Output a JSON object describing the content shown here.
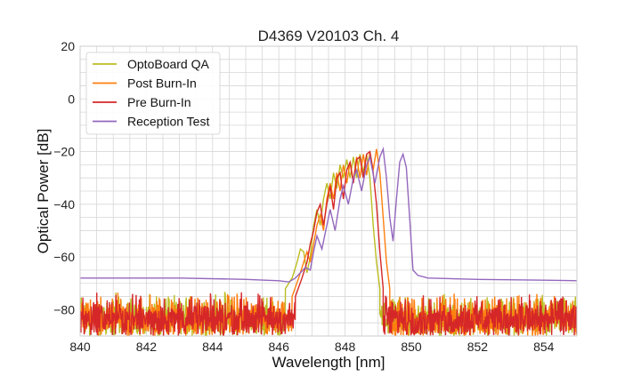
{
  "chart_data": {
    "type": "line",
    "title": "D4369 V20103 Ch. 4",
    "xlabel": "Wavelength [nm]",
    "ylabel": "Optical Power [dB]",
    "xlim": [
      840,
      855
    ],
    "ylim": [
      -90,
      20
    ],
    "x_ticks": [
      "840",
      "842",
      "844",
      "846",
      "848",
      "850",
      "852",
      "854"
    ],
    "y_ticks": [
      "−80",
      "−60",
      "−40",
      "−20",
      "0",
      "20"
    ],
    "grid": true,
    "legend_position": "top-left",
    "noise_floor": {
      "min": -90,
      "max": -73
    },
    "series": [
      {
        "name": "OptoBoard QA",
        "color": "#bcbd22",
        "noise": {
          "start": 840,
          "end": 846.2
        },
        "points": [
          [
            846.2,
            -72
          ],
          [
            846.4,
            -68
          ],
          [
            846.55,
            -62
          ],
          [
            846.65,
            -57
          ],
          [
            846.75,
            -58
          ],
          [
            846.85,
            -66
          ],
          [
            846.95,
            -60
          ],
          [
            847.05,
            -48
          ],
          [
            847.15,
            -42
          ],
          [
            847.25,
            -48
          ],
          [
            847.35,
            -38
          ],
          [
            847.45,
            -32
          ],
          [
            847.55,
            -38
          ],
          [
            847.65,
            -28
          ],
          [
            847.75,
            -34
          ],
          [
            847.85,
            -25
          ],
          [
            847.95,
            -30
          ],
          [
            848.05,
            -23
          ],
          [
            848.15,
            -30
          ],
          [
            848.25,
            -22
          ],
          [
            848.35,
            -30
          ],
          [
            848.45,
            -21
          ],
          [
            848.55,
            -28
          ],
          [
            848.65,
            -21
          ],
          [
            848.75,
            -30
          ],
          [
            848.85,
            -48
          ],
          [
            848.95,
            -62
          ],
          [
            849.05,
            -72
          ]
        ],
        "noise_after": {
          "start": 849.05,
          "end": 855
        }
      },
      {
        "name": "Post Burn-In",
        "color": "#ff7f0e",
        "noise": {
          "start": 840,
          "end": 846.4
        },
        "points": [
          [
            846.4,
            -75
          ],
          [
            846.6,
            -68
          ],
          [
            846.75,
            -62
          ],
          [
            846.85,
            -58
          ],
          [
            846.95,
            -62
          ],
          [
            847.05,
            -55
          ],
          [
            847.15,
            -48
          ],
          [
            847.25,
            -44
          ],
          [
            847.35,
            -50
          ],
          [
            847.45,
            -38
          ],
          [
            847.55,
            -32
          ],
          [
            847.65,
            -38
          ],
          [
            847.75,
            -28
          ],
          [
            847.85,
            -35
          ],
          [
            847.95,
            -25
          ],
          [
            848.05,
            -32
          ],
          [
            848.15,
            -24
          ],
          [
            848.25,
            -31
          ],
          [
            848.35,
            -22
          ],
          [
            848.45,
            -30
          ],
          [
            848.55,
            -21
          ],
          [
            848.65,
            -29
          ],
          [
            848.75,
            -20
          ],
          [
            848.85,
            -27
          ],
          [
            848.95,
            -19
          ],
          [
            849.05,
            -28
          ],
          [
            849.15,
            -45
          ],
          [
            849.25,
            -62
          ],
          [
            849.35,
            -72
          ]
        ],
        "noise_after": {
          "start": 849.35,
          "end": 855
        }
      },
      {
        "name": "Pre Burn-In",
        "color": "#d62728",
        "noise": {
          "start": 840,
          "end": 846.5
        },
        "points": [
          [
            846.5,
            -75
          ],
          [
            846.7,
            -68
          ],
          [
            846.85,
            -62
          ],
          [
            846.95,
            -55
          ],
          [
            847.05,
            -50
          ],
          [
            847.15,
            -43
          ],
          [
            847.25,
            -40
          ],
          [
            847.35,
            -48
          ],
          [
            847.45,
            -40
          ],
          [
            847.55,
            -33
          ],
          [
            847.65,
            -42
          ],
          [
            847.75,
            -30
          ],
          [
            847.85,
            -28
          ],
          [
            847.95,
            -38
          ],
          [
            848.05,
            -27
          ],
          [
            848.15,
            -24
          ],
          [
            848.25,
            -32
          ],
          [
            848.35,
            -23
          ],
          [
            848.45,
            -22
          ],
          [
            848.55,
            -30
          ],
          [
            848.65,
            -21
          ],
          [
            848.75,
            -20
          ],
          [
            848.85,
            -28
          ],
          [
            848.95,
            -40
          ],
          [
            849.05,
            -58
          ],
          [
            849.15,
            -72
          ]
        ],
        "noise_after": {
          "start": 849.15,
          "end": 855
        }
      },
      {
        "name": "Reception Test",
        "color": "#9467bd",
        "baseline": [
          [
            840,
            -68
          ],
          [
            843,
            -68
          ],
          [
            845,
            -68.5
          ],
          [
            846,
            -69
          ],
          [
            846.3,
            -69.5
          ]
        ],
        "points": [
          [
            846.3,
            -69.5
          ],
          [
            846.5,
            -68
          ],
          [
            846.65,
            -66
          ],
          [
            846.8,
            -64
          ],
          [
            846.95,
            -65
          ],
          [
            847.05,
            -58
          ],
          [
            847.15,
            -52
          ],
          [
            847.3,
            -57
          ],
          [
            847.45,
            -48
          ],
          [
            847.55,
            -42
          ],
          [
            847.7,
            -50
          ],
          [
            847.85,
            -38
          ],
          [
            847.95,
            -33
          ],
          [
            848.1,
            -40
          ],
          [
            848.25,
            -30
          ],
          [
            848.35,
            -27
          ],
          [
            848.5,
            -35
          ],
          [
            848.65,
            -25
          ],
          [
            848.75,
            -22
          ],
          [
            848.9,
            -32
          ],
          [
            849.05,
            -22
          ],
          [
            849.15,
            -19
          ],
          [
            849.25,
            -30
          ],
          [
            849.35,
            -45
          ],
          [
            849.45,
            -54
          ],
          [
            849.55,
            -38
          ],
          [
            849.65,
            -24
          ],
          [
            849.75,
            -21
          ],
          [
            849.85,
            -26
          ],
          [
            849.95,
            -45
          ],
          [
            850.05,
            -65
          ],
          [
            850.2,
            -67
          ],
          [
            850.5,
            -68
          ]
        ],
        "baseline_after": [
          [
            850.5,
            -68
          ],
          [
            852,
            -68.5
          ],
          [
            854,
            -68.8
          ],
          [
            855,
            -69
          ]
        ]
      }
    ]
  }
}
